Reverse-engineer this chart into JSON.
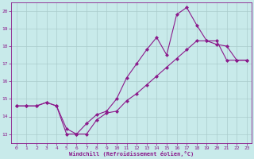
{
  "xlabel": "Windchill (Refroidissement éolien,°C)",
  "ylabel": "",
  "bg_color": "#c8eaea",
  "line_color": "#8b1a8b",
  "grid_color": "#aacccc",
  "xlim": [
    -0.5,
    23.5
  ],
  "ylim": [
    12.5,
    20.5
  ],
  "yticks": [
    13,
    14,
    15,
    16,
    17,
    18,
    19,
    20
  ],
  "xticks": [
    0,
    1,
    2,
    3,
    4,
    5,
    6,
    7,
    8,
    9,
    10,
    11,
    12,
    13,
    14,
    15,
    16,
    17,
    18,
    19,
    20,
    21,
    22,
    23
  ],
  "line1_x": [
    0,
    1,
    2,
    3,
    4,
    5,
    6,
    7,
    8,
    9,
    10,
    11,
    12,
    13,
    14,
    15,
    16,
    17,
    18,
    19,
    20,
    21,
    22,
    23
  ],
  "line1_y": [
    14.6,
    14.6,
    14.6,
    14.8,
    14.6,
    13.3,
    13.0,
    13.6,
    14.1,
    14.3,
    15.0,
    16.2,
    17.0,
    17.8,
    18.5,
    17.5,
    19.8,
    20.2,
    19.2,
    18.3,
    18.1,
    18.0,
    17.2,
    17.2
  ],
  "line2_x": [
    0,
    1,
    2,
    3,
    4,
    5,
    6,
    7,
    8,
    9,
    10,
    11,
    12,
    13,
    14,
    15,
    16,
    17,
    18,
    19,
    20,
    21,
    22,
    23
  ],
  "line2_y": [
    14.6,
    14.6,
    14.6,
    14.8,
    14.6,
    13.0,
    13.0,
    13.0,
    13.8,
    14.2,
    14.3,
    14.9,
    15.3,
    15.8,
    16.3,
    16.8,
    17.3,
    17.8,
    18.3,
    18.3,
    18.3,
    17.2,
    17.2,
    17.2
  ],
  "marker": "D",
  "marker_size": 2.0,
  "linewidth": 0.8
}
